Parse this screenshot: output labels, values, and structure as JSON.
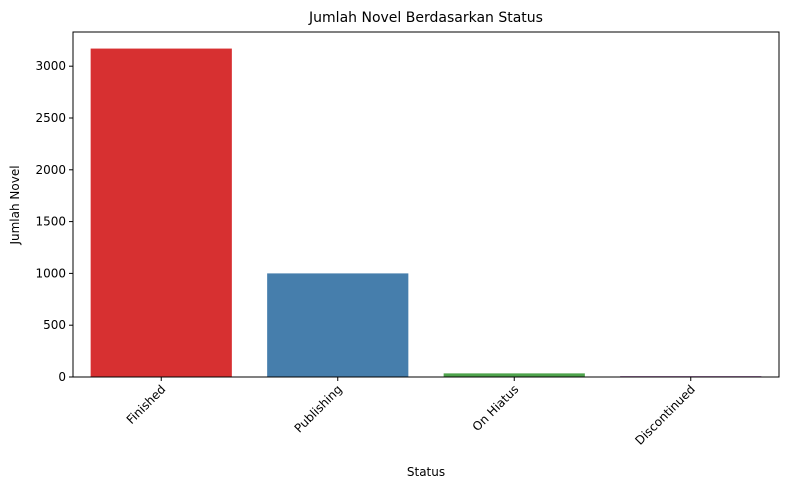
{
  "chart_data": {
    "type": "bar",
    "title": "Jumlah Novel Berdasarkan Status",
    "xlabel": "Status",
    "ylabel": "Jumlah Novel",
    "categories": [
      "Finished",
      "Publishing",
      "On Hiatus",
      "Discontinued"
    ],
    "values": [
      3170,
      1000,
      35,
      8
    ],
    "colors": [
      "#d73031",
      "#467eac",
      "#4ea34c",
      "#984ea3"
    ],
    "ylim": [
      0,
      3330
    ],
    "yticks": [
      0,
      500,
      1000,
      1500,
      2000,
      2500,
      3000
    ],
    "ytick_labels": [
      "0",
      "500",
      "1000",
      "1500",
      "2000",
      "2500",
      "3000"
    ],
    "grid": false,
    "legend": "none"
  }
}
